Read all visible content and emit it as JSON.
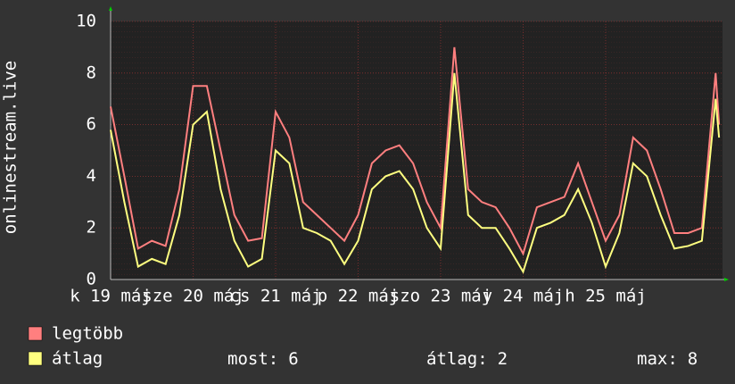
{
  "chart_data": {
    "type": "line",
    "y_label": "onlinestream.live",
    "x": [
      0,
      4,
      8,
      12,
      16,
      20,
      24,
      28,
      32,
      36,
      40,
      44,
      48,
      52,
      56,
      60,
      64,
      68,
      72,
      76,
      80,
      84,
      88,
      92,
      96,
      100,
      104,
      108,
      112,
      116,
      120,
      124,
      128,
      132,
      136,
      140,
      144,
      148,
      152,
      156,
      160,
      164,
      168,
      172,
      176,
      177
    ],
    "series": [
      {
        "name": "legtöbb",
        "color": "#ff7f7f",
        "values": [
          6.7,
          4.0,
          1.2,
          1.5,
          1.3,
          3.5,
          7.5,
          7.5,
          5.0,
          2.5,
          1.5,
          1.6,
          6.5,
          5.5,
          3.0,
          2.5,
          2.0,
          1.5,
          2.5,
          4.5,
          5.0,
          5.2,
          4.5,
          3.0,
          2.0,
          9.0,
          3.5,
          3.0,
          2.8,
          2.0,
          1.0,
          2.8,
          3.0,
          3.2,
          4.5,
          3.0,
          1.5,
          2.5,
          5.5,
          5.0,
          3.5,
          1.8,
          1.8,
          2.0,
          8.0,
          6.0
        ]
      },
      {
        "name": "átlag",
        "color": "#ffff80",
        "values": [
          5.8,
          3.0,
          0.5,
          0.8,
          0.6,
          2.5,
          6.0,
          6.5,
          3.5,
          1.5,
          0.5,
          0.8,
          5.0,
          4.5,
          2.0,
          1.8,
          1.5,
          0.6,
          1.5,
          3.5,
          4.0,
          4.2,
          3.5,
          2.0,
          1.2,
          8.0,
          2.5,
          2.0,
          2.0,
          1.2,
          0.3,
          2.0,
          2.2,
          2.5,
          3.5,
          2.2,
          0.5,
          1.8,
          4.5,
          4.0,
          2.5,
          1.2,
          1.3,
          1.5,
          7.0,
          5.5
        ]
      }
    ],
    "xlim": [
      0,
      178
    ],
    "xticks": [
      {
        "value": 0,
        "label": "k 19 máj"
      },
      {
        "value": 24,
        "label": "sze 20 máj"
      },
      {
        "value": 48,
        "label": "cs 21 máj"
      },
      {
        "value": 72,
        "label": "p 22 máj"
      },
      {
        "value": 96,
        "label": "szo 23 máj"
      },
      {
        "value": 120,
        "label": "v 24 máj"
      },
      {
        "value": 144,
        "label": "h 25 máj"
      }
    ],
    "ylim": [
      0,
      10
    ],
    "yticks": [
      0,
      2,
      4,
      6,
      8,
      10
    ],
    "grid": true,
    "stats": [
      {
        "label": "most:",
        "value": 6
      },
      {
        "label": "átlag:",
        "value": 2
      },
      {
        "label": "max:",
        "value": 8
      }
    ]
  }
}
